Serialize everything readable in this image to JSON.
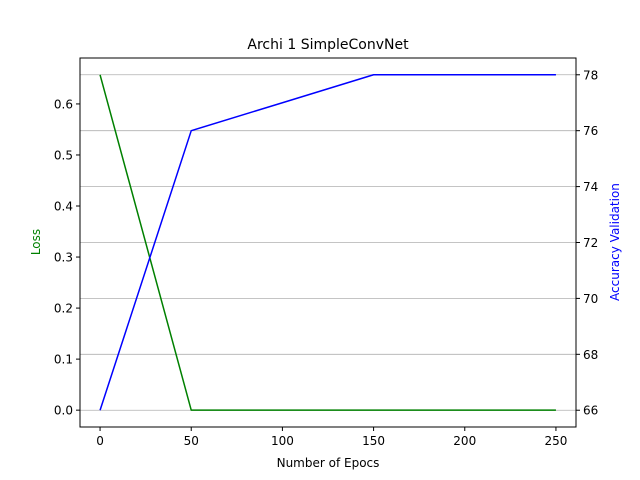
{
  "chart_data": {
    "type": "line",
    "title": "Archi 1 SimpleConvNet",
    "xlabel": "Number of Epocs",
    "ylabel_left": "Loss",
    "ylabel_right": "Accuracy Validation",
    "xlim": [
      -11,
      261
    ],
    "ylim_left": [
      -0.033,
      0.69
    ],
    "ylim_right": [
      65.4,
      78.6
    ],
    "x_ticks": [
      0,
      50,
      100,
      150,
      200,
      250
    ],
    "y_ticks_left": [
      0.0,
      0.1,
      0.2,
      0.3,
      0.4,
      0.5,
      0.6
    ],
    "y_ticks_right": [
      66,
      68,
      70,
      72,
      74,
      76,
      78
    ],
    "grid": "horizontal, right axis",
    "series": [
      {
        "axis": "left",
        "color": "#008000",
        "x": [
          0,
          50,
          100,
          150,
          200,
          250
        ],
        "values": [
          0.657,
          0.0,
          0.0,
          0.0,
          0.0,
          0.0
        ]
      },
      {
        "axis": "right",
        "color": "#0000ff",
        "x": [
          0,
          50,
          100,
          150,
          200,
          250
        ],
        "values": [
          66,
          76,
          77,
          78,
          78,
          78
        ]
      }
    ],
    "colors": {
      "left_label": "#008000",
      "right_label": "#0000ff",
      "grid": "#b0b0b0"
    }
  }
}
